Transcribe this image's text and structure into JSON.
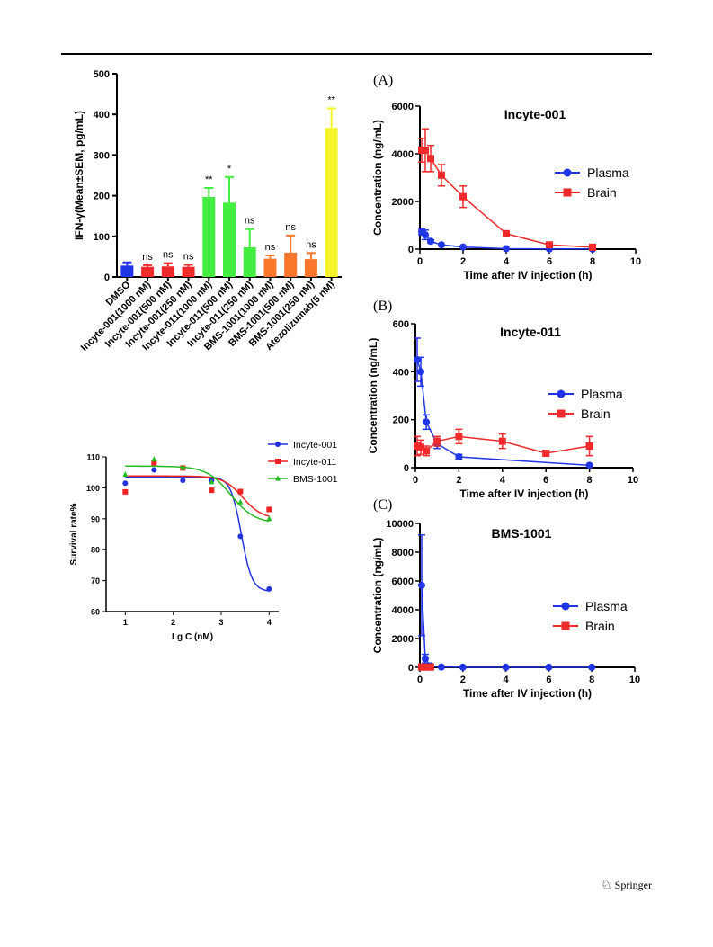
{
  "footer": {
    "publisher": "Springer",
    "logo_icon": "springer-horse-icon"
  },
  "chart_data": [
    {
      "id": "ifn",
      "type": "bar",
      "ylabel": "IFN-γ(Mean±SEM, pg/mL)",
      "ylim": [
        0,
        500
      ],
      "yticks": [
        0,
        100,
        200,
        300,
        400,
        500
      ],
      "categories": [
        "DMSO",
        "Incyte-001(1000 nM)",
        "Incyte-001(500 nM)",
        "Incyte-001(250 nM)",
        "Incyte-011(1000 nM)",
        "Incyte-011(500 nM)",
        "Incyte-011(250 nM)",
        "BMS-1001(1000 nM)",
        "BMS-1001(500 nM)",
        "BMS-1001(250 nM)",
        "Atezolizumab(5 nM)"
      ],
      "values": [
        28,
        25,
        26,
        25,
        197,
        183,
        73,
        45,
        60,
        44,
        367
      ],
      "errors": [
        8,
        4,
        8,
        5,
        22,
        63,
        45,
        8,
        42,
        15,
        48
      ],
      "colors": [
        "#1f35e6",
        "#ee2a2a",
        "#ee2a2a",
        "#ee2a2a",
        "#44ee40",
        "#44ee40",
        "#44ee40",
        "#f9762a",
        "#f9762a",
        "#f9762a",
        "#f5f52a"
      ],
      "annotations": [
        "",
        "ns",
        "ns",
        "ns",
        "**",
        "*",
        "ns",
        "ns",
        "ns",
        "ns",
        "**"
      ]
    },
    {
      "id": "survival",
      "type": "scatter",
      "xlabel": "Lg C (nM)",
      "ylabel": "Survival rate%",
      "xlim": [
        0.6,
        4.2
      ],
      "xticks": [
        1,
        2,
        3,
        4
      ],
      "ylim": [
        60,
        110
      ],
      "yticks": [
        60,
        70,
        80,
        90,
        100,
        110
      ],
      "series": [
        {
          "name": "Incyte-001",
          "color": "#2233dd",
          "marker": "circle",
          "x": [
            1,
            1.6,
            2.2,
            2.8,
            3.4,
            4
          ],
          "y": [
            101.5,
            105.8,
            102.4,
            102.4,
            84.3,
            67.3
          ],
          "fit": {
            "top": 103.5,
            "bottom": 66.5,
            "ec": 3.42,
            "k": 9
          }
        },
        {
          "name": "Incyte-011",
          "color": "#ee2222",
          "marker": "square",
          "x": [
            1,
            1.6,
            2.2,
            2.8,
            3.4,
            4
          ],
          "y": [
            98.7,
            108,
            106.4,
            99.2,
            98.8,
            93
          ],
          "fit": {
            "top": 103.8,
            "bottom": 90,
            "ec": 3.45,
            "k": 5
          }
        },
        {
          "name": "BMS-1001",
          "color": "#22bb22",
          "marker": "triangle",
          "x": [
            1,
            1.6,
            2.2,
            2.8,
            3.4,
            4
          ],
          "y": [
            104.3,
            109.2,
            106.5,
            101.9,
            95.4,
            90
          ],
          "fit": {
            "top": 107,
            "bottom": 88.5,
            "ec": 3.2,
            "k": 4
          }
        }
      ]
    },
    {
      "id": "pk-a",
      "type": "line",
      "panel": "(A)",
      "title": "Incyte-001",
      "xlabel": "Time after IV injection (h)",
      "ylabel": "Concentration (ng/mL)",
      "xlim": [
        0,
        10
      ],
      "xticks": [
        0,
        2,
        4,
        6,
        8,
        10
      ],
      "ylim": [
        0,
        6000
      ],
      "yticks": [
        0,
        2000,
        4000,
        6000
      ],
      "series": [
        {
          "name": "Plasma",
          "color": "#1f35e6",
          "marker": "circle",
          "x": [
            0.083,
            0.25,
            0.5,
            1,
            2,
            4,
            6,
            8
          ],
          "y": [
            720,
            600,
            330,
            180,
            90,
            20,
            10,
            5
          ],
          "err": [
            120,
            200,
            60,
            40,
            20,
            10,
            5,
            5
          ]
        },
        {
          "name": "Brain",
          "color": "#ee2a2a",
          "marker": "square",
          "x": [
            0.083,
            0.25,
            0.5,
            1,
            2,
            4,
            6,
            8
          ],
          "y": [
            4150,
            4150,
            3800,
            3100,
            2200,
            650,
            180,
            80
          ],
          "err": [
            500,
            900,
            550,
            450,
            450,
            60,
            40,
            20
          ]
        }
      ]
    },
    {
      "id": "pk-b",
      "type": "line",
      "panel": "(B)",
      "title": "Incyte-011",
      "xlabel": "Time after IV injection (h)",
      "ylabel": "Concentration (ng/mL)",
      "xlim": [
        0,
        10
      ],
      "xticks": [
        0,
        2,
        4,
        6,
        8,
        10
      ],
      "ylim": [
        0,
        600
      ],
      "yticks": [
        0,
        200,
        400,
        600
      ],
      "series": [
        {
          "name": "Plasma",
          "color": "#1f35e6",
          "marker": "circle",
          "x": [
            0.083,
            0.25,
            0.5,
            1,
            2,
            8
          ],
          "y": [
            450,
            400,
            190,
            100,
            45,
            10
          ],
          "err": [
            90,
            60,
            30,
            20,
            10,
            5
          ]
        },
        {
          "name": "Brain",
          "color": "#ee2a2a",
          "marker": "square",
          "x": [
            0.083,
            0.25,
            0.5,
            1,
            2,
            4,
            6,
            8
          ],
          "y": [
            90,
            85,
            70,
            110,
            130,
            110,
            60,
            90
          ],
          "err": [
            40,
            30,
            20,
            20,
            30,
            30,
            10,
            40
          ]
        }
      ]
    },
    {
      "id": "pk-c",
      "type": "line",
      "panel": "(C)",
      "title": "BMS-1001",
      "xlabel": "Time after IV injection (h)",
      "ylabel": "Concentration (ng/mL)",
      "xlim": [
        0,
        10
      ],
      "xticks": [
        0,
        2,
        4,
        6,
        8,
        10
      ],
      "ylim": [
        0,
        10000
      ],
      "yticks": [
        0,
        2000,
        4000,
        6000,
        8000,
        10000
      ],
      "series": [
        {
          "name": "Plasma",
          "color": "#1f35e6",
          "marker": "circle",
          "x": [
            0.083,
            0.25,
            0.5,
            1,
            2,
            4,
            6,
            8
          ],
          "y": [
            5700,
            600,
            100,
            20,
            10,
            5,
            5,
            5
          ],
          "err": [
            3500,
            300,
            50,
            10,
            5,
            5,
            5,
            5
          ]
        },
        {
          "name": "Brain",
          "color": "#ee2a2a",
          "marker": "square",
          "x": [
            0.083,
            0.25,
            0.5
          ],
          "y": [
            20,
            20,
            15
          ],
          "err": [
            5,
            5,
            5
          ]
        }
      ]
    }
  ]
}
